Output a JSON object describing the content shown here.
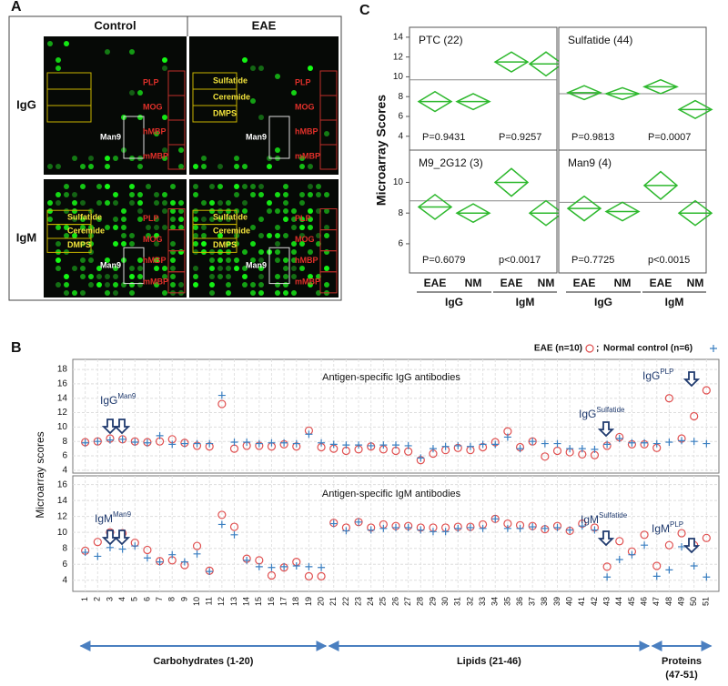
{
  "panels": [
    "A",
    "B",
    "C"
  ],
  "panel_a": {
    "columns": [
      "Control",
      "EAE"
    ],
    "rows": [
      "IgG",
      "IgM"
    ],
    "images": [
      [
        {
          "white": "Man9",
          "red": [
            "PLP",
            "MOG",
            "hMBP",
            "mMBP"
          ]
        },
        {
          "yellow": [
            "Sulfatide",
            "Ceremide",
            "DMPS"
          ],
          "white": "Man9",
          "red": [
            "PLP",
            "MOG",
            "hMBP",
            "mMBP"
          ]
        }
      ],
      [
        {
          "yellow": [
            "Sulfatide",
            "Ceremide",
            "DMPS"
          ],
          "white": "Man9",
          "red": [
            "PLP",
            "MOG",
            "hMBP",
            "mMBP"
          ]
        },
        {
          "yellow": [
            "Sulfatide",
            "Ceremide",
            "DMPS"
          ],
          "white": "Man9",
          "red": [
            "PLP",
            "MOG",
            "hMBP",
            "mMBP"
          ]
        }
      ]
    ]
  },
  "chart_data": [
    {
      "type": "diamond",
      "title": "PTC (22)",
      "ylabel": "Microarray Scores",
      "color": "#2db82d",
      "values": [
        7.5,
        7.5,
        11.5,
        11.3
      ],
      "errors": [
        1.0,
        0.8,
        1.0,
        1.2
      ],
      "reference": 9.7,
      "annotations": [
        "P=0.9431",
        "P=0.9257"
      ],
      "ylim": [
        2.6,
        15
      ],
      "yticks": [
        4,
        6,
        8,
        10,
        12,
        14
      ]
    },
    {
      "type": "diamond",
      "title": "Sulfatide (44)",
      "color": "#2db82d",
      "values": [
        8.4,
        8.3,
        9.0,
        6.7
      ],
      "errors": [
        0.7,
        0.6,
        0.7,
        0.9
      ],
      "reference": 8.3,
      "annotations": [
        "P=0.9813",
        "P=0.0007"
      ],
      "ylim": [
        2.6,
        15
      ]
    },
    {
      "type": "diamond",
      "title": "M9_2G12 (3)",
      "color": "#2db82d",
      "values": [
        8.4,
        8.0,
        10.0,
        8.0
      ],
      "errors": [
        0.8,
        0.6,
        0.9,
        0.8
      ],
      "reference": 8.8,
      "annotations": [
        "P=0.6079",
        "p<0.0017"
      ],
      "ylim": [
        4.1,
        12.1
      ],
      "yticks": [
        6,
        8,
        10
      ],
      "categories": [
        "EAE",
        "NM",
        "EAE",
        "NM"
      ],
      "groups": [
        "IgG",
        "IgM"
      ]
    },
    {
      "type": "diamond",
      "title": "Man9 (4)",
      "color": "#2db82d",
      "values": [
        8.3,
        8.1,
        9.8,
        8.0
      ],
      "errors": [
        0.8,
        0.6,
        0.9,
        0.8
      ],
      "reference": 8.7,
      "annotations": [
        "P=0.7725",
        "p<0.0015"
      ],
      "ylim": [
        4.1,
        12.1
      ],
      "categories": [
        "EAE",
        "NM",
        "EAE",
        "NM"
      ],
      "groups": [
        "IgG",
        "IgM"
      ]
    },
    {
      "type": "scatter",
      "title": "Antigen-specific IgG antibodies",
      "ylabel": "Microarray scores",
      "legend": "top-right",
      "legend_separator": ";",
      "grid": true,
      "xlim": [
        0,
        52
      ],
      "ylim": [
        3.6,
        19.4
      ],
      "yticks": [
        4,
        6,
        8,
        10,
        12,
        14,
        16,
        18
      ],
      "x": [
        1,
        2,
        3,
        4,
        5,
        6,
        7,
        8,
        9,
        10,
        11,
        12,
        13,
        14,
        15,
        16,
        17,
        18,
        19,
        20,
        21,
        22,
        23,
        24,
        25,
        26,
        27,
        28,
        29,
        30,
        31,
        32,
        33,
        34,
        35,
        36,
        37,
        38,
        39,
        40,
        41,
        42,
        43,
        44,
        45,
        46,
        47,
        48,
        49,
        50,
        51
      ],
      "series": [
        {
          "name": "EAE (n=10)",
          "color": "#e05050",
          "marker": "circle",
          "values": [
            7.9,
            8.0,
            8.4,
            8.3,
            8.0,
            7.9,
            8.0,
            8.3,
            7.8,
            7.4,
            7.3,
            13.2,
            7.0,
            7.4,
            7.4,
            7.3,
            7.6,
            7.3,
            9.5,
            7.2,
            7.0,
            6.7,
            6.9,
            7.3,
            6.9,
            6.7,
            6.6,
            5.4,
            6.3,
            6.8,
            7.1,
            6.8,
            7.2,
            7.9,
            9.4,
            7.2,
            8.0,
            5.9,
            6.7,
            6.5,
            6.2,
            6.1,
            7.4,
            8.6,
            7.6,
            7.6,
            7.1,
            14.0,
            8.4,
            11.5,
            15.1
          ]
        },
        {
          "name": "Normal control (n=6)",
          "color": "#3a7fc1",
          "marker": "plus",
          "values": [
            7.8,
            8.0,
            8.2,
            8.3,
            7.9,
            7.8,
            8.8,
            7.6,
            7.7,
            7.7,
            7.7,
            14.4,
            7.9,
            7.9,
            7.7,
            7.8,
            7.8,
            7.7,
            9.0,
            7.8,
            7.6,
            7.5,
            7.5,
            7.4,
            7.5,
            7.5,
            7.4,
            5.7,
            7.0,
            7.3,
            7.4,
            7.3,
            7.6,
            7.6,
            8.6,
            7.0,
            8.0,
            7.7,
            7.7,
            7.0,
            7.0,
            6.9,
            7.6,
            8.4,
            7.8,
            7.8,
            7.7,
            7.9,
            8.1,
            8.0,
            7.7
          ]
        }
      ],
      "annotations": [
        {
          "text": "IgG",
          "sup": "Man9"
        },
        {
          "text": "IgG",
          "sup": "Sulfatide"
        },
        {
          "text": "IgG",
          "sup": "PLP"
        }
      ]
    },
    {
      "type": "scatter",
      "title": "Antigen-specific IgM antibodies",
      "grid": true,
      "xlim": [
        0,
        52
      ],
      "ylim": [
        2.6,
        17.1
      ],
      "yticks": [
        4,
        6,
        8,
        10,
        12,
        14,
        16
      ],
      "x": [
        1,
        2,
        3,
        4,
        5,
        6,
        7,
        8,
        9,
        10,
        11,
        12,
        13,
        14,
        15,
        16,
        17,
        18,
        19,
        20,
        21,
        22,
        23,
        24,
        25,
        26,
        27,
        28,
        29,
        30,
        31,
        32,
        33,
        34,
        35,
        36,
        37,
        38,
        39,
        40,
        41,
        42,
        43,
        44,
        45,
        46,
        47,
        48,
        49,
        50,
        51
      ],
      "xticks": [
        1,
        2,
        3,
        4,
        5,
        6,
        7,
        8,
        9,
        10,
        11,
        12,
        13,
        14,
        15,
        16,
        17,
        18,
        19,
        20,
        21,
        22,
        23,
        24,
        25,
        26,
        27,
        28,
        29,
        30,
        31,
        32,
        33,
        34,
        35,
        36,
        37,
        38,
        39,
        40,
        41,
        42,
        43,
        44,
        45,
        46,
        47,
        48,
        49,
        50,
        51
      ],
      "series": [
        {
          "color": "#e05050",
          "marker": "circle",
          "values": [
            7.7,
            8.8,
            10.0,
            9.9,
            8.7,
            7.8,
            6.4,
            6.5,
            5.9,
            8.3,
            5.2,
            12.2,
            10.7,
            6.7,
            6.5,
            4.6,
            5.6,
            6.3,
            4.5,
            4.5,
            11.2,
            10.6,
            11.3,
            10.6,
            11.0,
            10.8,
            10.8,
            10.6,
            10.6,
            10.6,
            10.7,
            10.7,
            11.0,
            11.7,
            11.1,
            10.9,
            10.8,
            10.4,
            10.8,
            10.2,
            11.1,
            10.6,
            5.7,
            8.9,
            7.6,
            9.7,
            5.8,
            8.4,
            9.9,
            8.4,
            9.3
          ]
        },
        {
          "color": "#3a7fc1",
          "marker": "plus",
          "values": [
            7.5,
            7.0,
            8.1,
            7.9,
            8.3,
            6.8,
            6.3,
            7.2,
            6.3,
            7.3,
            5.1,
            11.0,
            9.7,
            6.5,
            5.7,
            5.6,
            5.7,
            5.8,
            5.7,
            5.6,
            11.1,
            10.2,
            11.3,
            10.3,
            10.5,
            10.6,
            10.6,
            10.3,
            10.1,
            10.1,
            10.5,
            10.6,
            10.5,
            11.7,
            10.5,
            10.5,
            10.7,
            10.5,
            10.6,
            10.3,
            10.8,
            10.3,
            4.4,
            6.6,
            7.2,
            8.4,
            4.5,
            5.3,
            8.2,
            5.8,
            4.4
          ]
        }
      ],
      "annotations": [
        {
          "text": "IgM",
          "sup": "Man9"
        },
        {
          "text": "IgM",
          "sup": "Sulfatide"
        },
        {
          "text": "IgM",
          "sup": "PLP"
        }
      ],
      "x_groups": [
        {
          "lines": [
            "Carbohydrates (1-20)"
          ],
          "from": 1,
          "to": 20
        },
        {
          "lines": [
            "Lipids (21-46)"
          ],
          "from": 21,
          "to": 46
        },
        {
          "lines": [
            "Proteins",
            "(47-51)"
          ],
          "from": 47,
          "to": 51
        }
      ]
    }
  ]
}
